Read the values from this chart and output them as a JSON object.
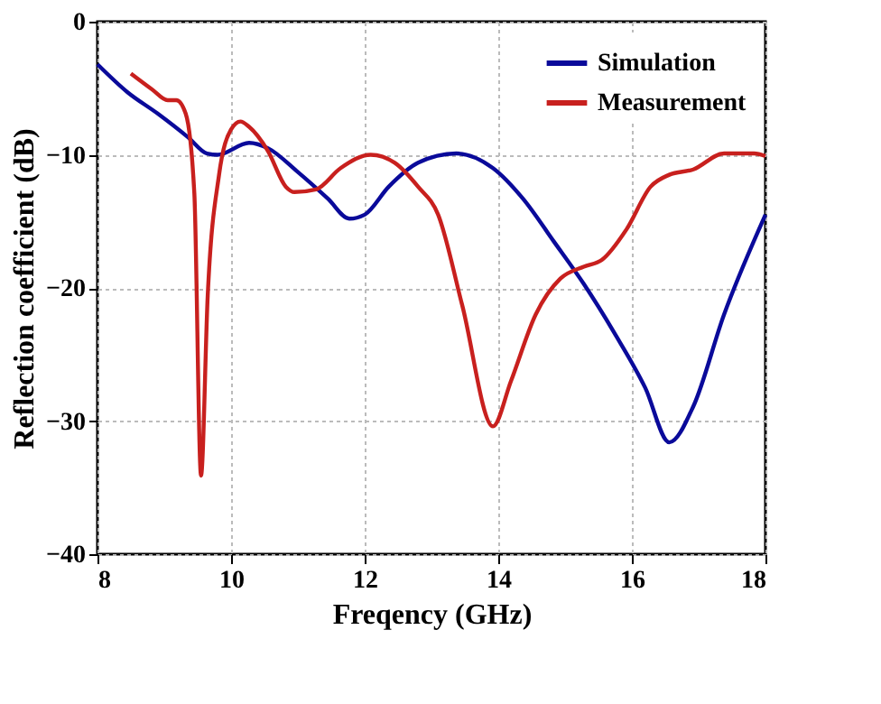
{
  "chart_data": {
    "type": "line",
    "xlabel": "Freqency (GHz)",
    "ylabel": "Reflection coefficient (dB)",
    "xlim": [
      8,
      18
    ],
    "xticks": [
      8,
      10,
      12,
      14,
      16,
      18
    ],
    "ylim": [
      -40,
      0
    ],
    "yticks": [
      -40,
      -30,
      -20,
      -10,
      0
    ],
    "grid": true,
    "legend": "top right",
    "line_style": "solid",
    "marker": "none",
    "series": [
      {
        "name": "Simulation",
        "color": "#0a0a9a",
        "x": [
          8,
          8.45,
          8.9,
          9.36,
          9.64,
          9.8,
          10.27,
          10.55,
          11,
          11.45,
          11.77,
          12,
          12.36,
          12.8,
          13.37,
          13.92,
          14.37,
          14.83,
          15.28,
          15.74,
          16.2,
          16.56,
          16.92,
          17.38,
          18
        ],
        "values": [
          -3.2,
          -5.3,
          -6.9,
          -8.7,
          -9.9,
          -10,
          -9.1,
          -9.5,
          -11.3,
          -13.3,
          -14.8,
          -14.5,
          -12.4,
          -10.6,
          -9.9,
          -11,
          -13.3,
          -16.5,
          -19.7,
          -23.4,
          -27.5,
          -31.6,
          -28.9,
          -22,
          -14.5
        ]
      },
      {
        "name": "Measurement",
        "color": "#c8201e",
        "x": [
          8.5,
          8.82,
          9.05,
          9.18,
          9.32,
          9.45,
          9.55,
          9.65,
          9.82,
          10,
          10.14,
          10.27,
          10.55,
          10.82,
          10.95,
          11.27,
          11.64,
          12.09,
          12.45,
          12.8,
          13.1,
          13.46,
          13.92,
          14.19,
          14.56,
          14.93,
          15.28,
          15.55,
          15.92,
          16.28,
          16.56,
          16.92,
          17.38,
          17.83,
          18
        ],
        "values": [
          -3.9,
          -5.1,
          -5.9,
          -5.9,
          -6.9,
          -12.9,
          -34.1,
          -20.6,
          -11.5,
          -8.1,
          -7.5,
          -7.9,
          -9.7,
          -12.4,
          -12.8,
          -12.6,
          -11,
          -10,
          -10.6,
          -12.4,
          -14.5,
          -21.3,
          -30.4,
          -27,
          -22,
          -19.3,
          -18.4,
          -17.9,
          -15.6,
          -12.4,
          -11.5,
          -11.1,
          -9.9,
          -9.9,
          -10.1
        ]
      }
    ]
  }
}
